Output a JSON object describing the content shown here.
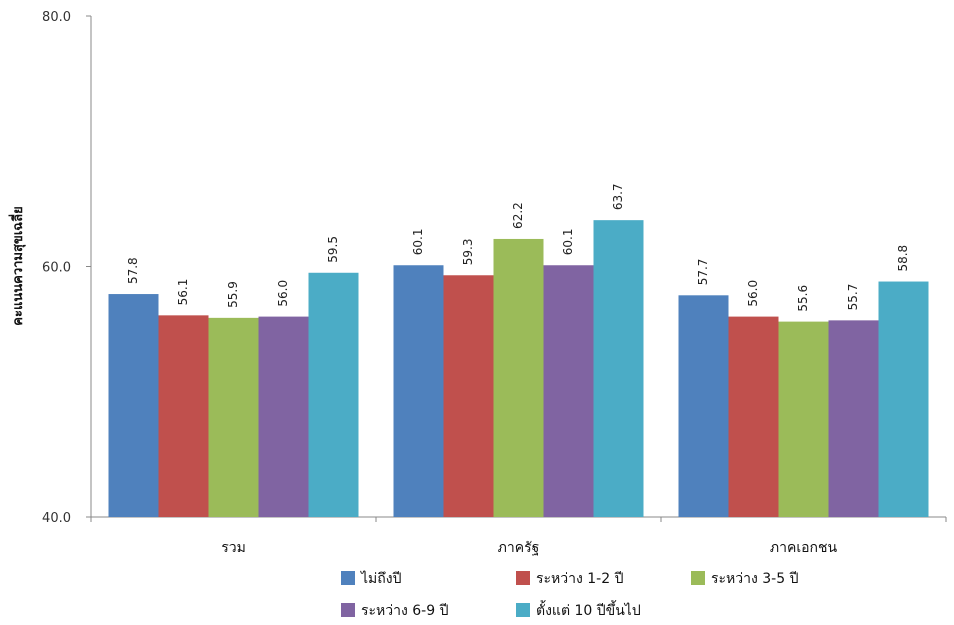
{
  "chart_data": {
    "type": "bar",
    "title": "",
    "xlabel": "",
    "ylabel": "คะแนนความสุขเฉลี่ย",
    "ylim": [
      40,
      80
    ],
    "yticks": [
      "40.0",
      "60.0",
      "80.0"
    ],
    "grid": false,
    "legend_position": "bottom",
    "categories": [
      "รวม",
      "ภาครัฐ",
      "ภาคเอกชน"
    ],
    "series": [
      {
        "name": "ไม่ถึงปี",
        "color": "#4F81BD",
        "values": [
          57.8,
          60.1,
          57.7
        ],
        "labels": [
          "57.8",
          "60.1",
          "57.7"
        ]
      },
      {
        "name": "ระหว่าง 1-2 ปี",
        "color": "#C0504D",
        "values": [
          56.1,
          59.3,
          56.0
        ],
        "labels": [
          "56.1",
          "59.3",
          "56.0"
        ]
      },
      {
        "name": "ระหว่าง 3-5 ปี",
        "color": "#9BBB59",
        "values": [
          55.9,
          62.2,
          55.6
        ],
        "labels": [
          "55.9",
          "62.2",
          "55.6"
        ]
      },
      {
        "name": "ระหว่าง 6-9 ปี",
        "color": "#8064A2",
        "values": [
          56.0,
          60.1,
          55.7
        ],
        "labels": [
          "56.0",
          "60.1",
          "55.7"
        ]
      },
      {
        "name": "ตั้งแต่ 10 ปีขึ้นไป",
        "color": "#4BACC6",
        "values": [
          59.5,
          63.7,
          58.8
        ],
        "labels": [
          "59.5",
          "63.7",
          "58.8"
        ]
      }
    ]
  }
}
